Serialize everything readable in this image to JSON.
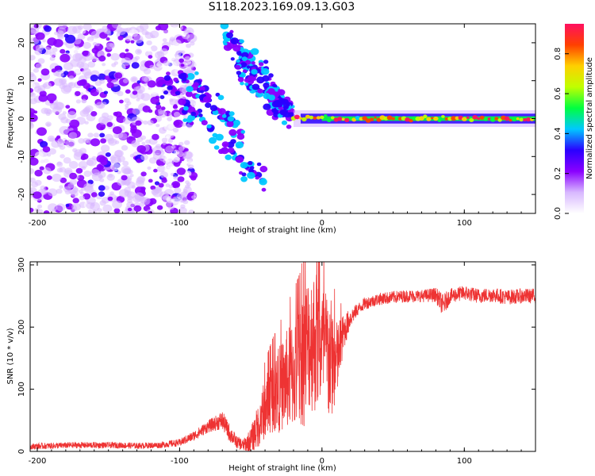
{
  "figure_title": "S118.2023.169.09.13.G03",
  "colorbar_ticks": [
    "0.0",
    "0.2",
    "0.4",
    "0.6",
    "0.8"
  ],
  "chart_data": [
    {
      "type": "heatmap",
      "title": "",
      "xlabel": "Height of straight line (km)",
      "ylabel": "Frequency (Hz)",
      "colorbar_label": "Normalized spectral amplitude",
      "xlim": [
        -205,
        150
      ],
      "ylim": [
        -25,
        25
      ],
      "clim": [
        0,
        0.95
      ],
      "xticks": [
        -200,
        -100,
        0,
        100
      ],
      "yticks": [
        -20,
        -10,
        0,
        10,
        20
      ],
      "colormap": [
        "#ffffff",
        "#d8b8ff",
        "#8a00ff",
        "#2a00ff",
        "#00c8ff",
        "#00ff40",
        "#c0ff00",
        "#ffd000",
        "#ff4000",
        "#ff1060"
      ],
      "features": [
        {
          "description": "scattered low-amplitude noise",
          "x_range": [
            -205,
            -110
          ],
          "y_range": [
            -25,
            25
          ],
          "amplitude": 0.1
        },
        {
          "description": "diagonal streaks",
          "x_range": [
            -110,
            -20
          ],
          "slope_hz_per_km": -0.35,
          "amplitude": 0.3
        },
        {
          "description": "steady carrier line",
          "x_range": [
            -20,
            150
          ],
          "frequency": 0,
          "amplitude": 0.85
        }
      ]
    },
    {
      "type": "line",
      "title": "",
      "xlabel": "Height of straight line (km)",
      "ylabel": "SNR (10 * v/v)",
      "xlim": [
        -205,
        150
      ],
      "ylim": [
        0,
        305
      ],
      "xticks": [
        -200,
        -100,
        0,
        100
      ],
      "yticks": [
        0,
        100,
        200,
        300
      ],
      "color": "#ee3333",
      "series": [
        {
          "x": [
            -205,
            -190,
            -175,
            -160,
            -145,
            -130,
            -115,
            -100,
            -90,
            -80,
            -75,
            -70,
            -65,
            -60,
            -55,
            -50,
            -45,
            -40,
            -35,
            -30,
            -25,
            -20,
            -15,
            -12,
            -10,
            -5,
            0,
            5,
            10,
            15,
            20,
            25,
            30,
            40,
            50,
            60,
            70,
            80,
            85,
            90,
            100,
            110,
            120,
            130,
            140,
            150
          ],
          "y": [
            8,
            9,
            10,
            10,
            10,
            9,
            10,
            14,
            25,
            40,
            45,
            50,
            30,
            15,
            10,
            18,
            40,
            70,
            90,
            100,
            115,
            125,
            140,
            160,
            175,
            180,
            170,
            150,
            140,
            190,
            215,
            228,
            238,
            245,
            248,
            250,
            250,
            252,
            235,
            250,
            255,
            250,
            252,
            248,
            250,
            250
          ],
          "spread": [
            5,
            5,
            5,
            5,
            5,
            5,
            5,
            6,
            8,
            10,
            12,
            15,
            15,
            10,
            10,
            20,
            35,
            50,
            60,
            70,
            80,
            90,
            100,
            120,
            110,
            120,
            100,
            110,
            70,
            30,
            15,
            10,
            10,
            10,
            10,
            10,
            10,
            12,
            18,
            12,
            12,
            12,
            12,
            12,
            12,
            12
          ]
        }
      ]
    }
  ]
}
